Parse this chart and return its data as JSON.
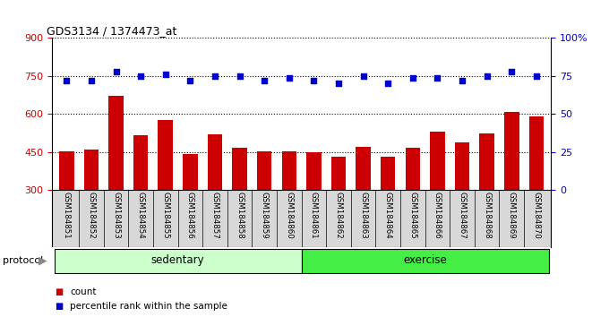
{
  "title": "GDS3134 / 1374473_at",
  "samples": [
    "GSM184851",
    "GSM184852",
    "GSM184853",
    "GSM184854",
    "GSM184855",
    "GSM184856",
    "GSM184857",
    "GSM184858",
    "GSM184859",
    "GSM184860",
    "GSM184861",
    "GSM184862",
    "GSM184863",
    "GSM184864",
    "GSM184865",
    "GSM184866",
    "GSM184867",
    "GSM184868",
    "GSM184869",
    "GSM184870"
  ],
  "counts": [
    452,
    462,
    672,
    517,
    578,
    443,
    520,
    468,
    453,
    452,
    450,
    432,
    472,
    432,
    468,
    530,
    488,
    525,
    610,
    590
  ],
  "percentiles": [
    72,
    72,
    78,
    75,
    76,
    72,
    75,
    75,
    72,
    74,
    72,
    70,
    75,
    70,
    74,
    74,
    72,
    75,
    78,
    75
  ],
  "ymin": 300,
  "ymax": 900,
  "yticks_left": [
    300,
    450,
    600,
    750,
    900
  ],
  "yticks_right": [
    0,
    25,
    50,
    75,
    100
  ],
  "bar_color": "#cc0000",
  "dot_color": "#0000cc",
  "sedentary_color": "#ccffcc",
  "exercise_color": "#44ee44",
  "group_labels": [
    "sedentary",
    "exercise"
  ],
  "group_ranges": [
    [
      0,
      10
    ],
    [
      10,
      20
    ]
  ],
  "legend_items": [
    "count",
    "percentile rank within the sample"
  ],
  "xlabel_protocol": "protocol",
  "plot_bg": "#ffffff",
  "sample_label_bg": "#d8d8d8"
}
